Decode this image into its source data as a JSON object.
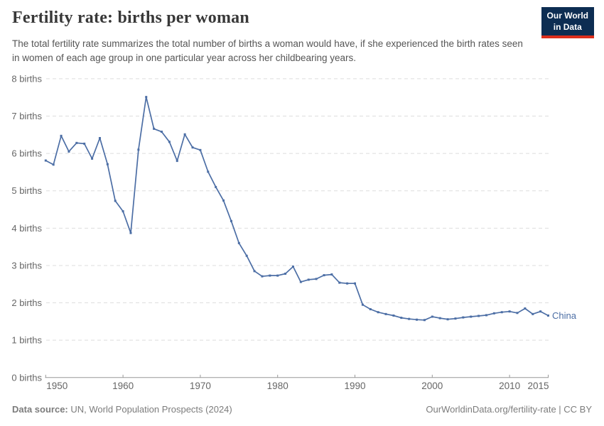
{
  "header": {
    "title": "Fertility rate: births per woman",
    "subtitle": "The total fertility rate summarizes the total number of births a woman would have, if she experienced the birth rates seen in women of each age group in one particular year across her childbearing years.",
    "logo_line1": "Our World",
    "logo_line2": "in Data"
  },
  "colors": {
    "series_blue": "#4c6ea5",
    "gridline": "#dddddd",
    "axis_line": "#999999",
    "axis_text": "#666666",
    "logo_navy": "#0d2d52",
    "logo_red": "#dc2e1c"
  },
  "chart_data": {
    "type": "line",
    "title": "Fertility rate: births per woman",
    "xlabel": "",
    "ylabel": "births",
    "xlim": [
      1950,
      2015
    ],
    "ylim": [
      0,
      8
    ],
    "grid": true,
    "legend_position": "end-of-line",
    "x_ticks": [
      1950,
      1960,
      1970,
      1980,
      1990,
      2000,
      2010,
      2015
    ],
    "y_ticks": [
      0,
      1,
      2,
      3,
      4,
      5,
      6,
      7,
      8
    ],
    "y_tick_suffix": " births",
    "series": [
      {
        "name": "China",
        "color": "#4c6ea5",
        "x_start": 1950,
        "x_end": 2015,
        "values": [
          5.81,
          5.7,
          6.47,
          6.05,
          6.28,
          6.26,
          5.86,
          6.41,
          5.71,
          4.73,
          4.45,
          3.87,
          6.1,
          7.51,
          6.66,
          6.58,
          6.31,
          5.8,
          6.51,
          6.16,
          6.09,
          5.51,
          5.1,
          4.74,
          4.19,
          3.6,
          3.26,
          2.85,
          2.71,
          2.73,
          2.73,
          2.78,
          2.97,
          2.56,
          2.62,
          2.64,
          2.74,
          2.76,
          2.54,
          2.52,
          2.52,
          1.95,
          1.83,
          1.75,
          1.7,
          1.66,
          1.6,
          1.57,
          1.55,
          1.54,
          1.63,
          1.59,
          1.56,
          1.58,
          1.61,
          1.63,
          1.65,
          1.67,
          1.72,
          1.75,
          1.77,
          1.73,
          1.85,
          1.7,
          1.77,
          1.66
        ]
      }
    ]
  },
  "footer": {
    "source_label": "Data source:",
    "source_text": " UN, World Population Prospects (2024)",
    "credit": "OurWorldinData.org/fertility-rate | CC BY"
  }
}
